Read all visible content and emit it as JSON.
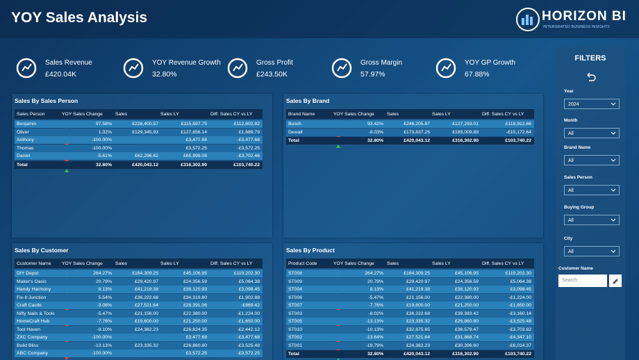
{
  "header": {
    "title": "YOY Sales Analysis",
    "logo": "HORIZON BI",
    "tagline": "INTERGRATED BUSINESS INSIGHTS"
  },
  "kpis": [
    {
      "label": "Sales Revenue",
      "value": "£420.04K"
    },
    {
      "label": "YOY Revenue Growth",
      "value": "32.80%"
    },
    {
      "label": "Gross Profit",
      "value": "£243.50K"
    },
    {
      "label": "Gross Margin",
      "value": "57.97%"
    },
    {
      "label": "YOY GP Growth",
      "value": "67.88%"
    }
  ],
  "tables": [
    {
      "title": "Sales By Sales Person",
      "columns": [
        "Sales Person",
        "YOY Sales Change",
        "Sales",
        "Sales LY",
        "Diff. Sales CY vs LY"
      ],
      "rows": [
        [
          "Benjamin",
          "97.58%",
          "£228,400.57",
          "£115,597.75",
          "£112,802.82"
        ],
        [
          "Oliver",
          "1.32%",
          "£129,345.93",
          "£127,656.14",
          "£1,689.79"
        ],
        [
          "Anthony",
          "-100.00%",
          "",
          "£3,477.68",
          "-£3,477.68"
        ],
        [
          "Thomas",
          "-100.00%",
          "",
          "£3,572.25",
          "-£3,572.25"
        ],
        [
          "Daniel",
          "-5.61%",
          "£62,296.62",
          "£65,999.08",
          "-£3,702.46"
        ]
      ],
      "total": [
        "Total",
        "32.80%",
        "£420,043.12",
        "£316,302.90",
        "£103,740.22"
      ]
    },
    {
      "title": "Sales By Brand",
      "columns": [
        "Brand Name",
        "YOY Sales Change",
        "Sales",
        "Sales LY",
        "Diff. Sales CY vs LY"
      ],
      "rows": [
        [
          "Bosch",
          "93.42%",
          "£246,205.87",
          "£127,293.01",
          "£118,912.86"
        ],
        [
          "Dewalt",
          "-8.03%",
          "£173,837.25",
          "£189,009.89",
          "-£15,172.64"
        ]
      ],
      "total": [
        "Total",
        "32.80%",
        "£420,043.12",
        "£316,302.90",
        "£103,740.22"
      ]
    },
    {
      "title": "Sales By Customer",
      "columns": [
        "Customer Name",
        "YOY Sales Change",
        "Sales",
        "Sales LY",
        "Diff. Sales CY vs LY"
      ],
      "rows": [
        [
          "DIY Depot",
          "264.27%",
          "£164,309.25",
          "£45,106.95",
          "£119,202.30"
        ],
        [
          "Maker's Oasis",
          "20.79%",
          "£29,420.97",
          "£24,356.59",
          "£5,064.38"
        ],
        [
          "Handy Harmony",
          "8.13%",
          "£41,219.38",
          "£38,120.93",
          "£3,098.45"
        ],
        [
          "Fix-It Junction",
          "5.54%",
          "£36,222.68",
          "£34,319.80",
          "£1,902.88"
        ],
        [
          "Craft Castle",
          "-3.06%",
          "£27,521.64",
          "£28,391.06",
          "-£869.42"
        ],
        [
          "Nifty Nails & Tools",
          "-5.47%",
          "£21,156.00",
          "£22,380.00",
          "-£1,224.00"
        ],
        [
          "HomeCraft Hub",
          "-7.76%",
          "£19,600.00",
          "£21,250.00",
          "-£1,650.00"
        ],
        [
          "Tool Haven",
          "-9.10%",
          "£24,382.23",
          "£26,824.35",
          "-£2,442.12"
        ],
        [
          "ZXC Company",
          "-100.00%",
          "",
          "£3,477.68",
          "-£3,477.68"
        ],
        [
          "Build Bliss",
          "-13.13%",
          "£23,335.32",
          "£26,860.80",
          "-£3,525.48"
        ],
        [
          "ABC Company",
          "-100.00%",
          "",
          "£3,572.25",
          "-£3,572.25"
        ]
      ]
    },
    {
      "title": "Sales By Product",
      "columns": [
        "Product Code",
        "YOY Sales Change",
        "Sales",
        "Sales LY",
        "Diff. Sales CY vs LY"
      ],
      "rows": [
        [
          "ST008",
          "264.27%",
          "£164,309.25",
          "£45,106.95",
          "£119,202.30"
        ],
        [
          "ST009",
          "20.79%",
          "£29,420.97",
          "£24,356.59",
          "£5,064.38"
        ],
        [
          "ST004",
          "8.13%",
          "£41,219.38",
          "£38,120.93",
          "£3,098.45"
        ],
        [
          "ST006",
          "-5.47%",
          "£21,156.00",
          "£22,380.00",
          "-£1,224.00"
        ],
        [
          "ST007",
          "-7.76%",
          "£19,600.00",
          "£21,250.00",
          "-£1,650.00"
        ],
        [
          "ST003",
          "-8.02%",
          "£36,222.68",
          "£39,383.42",
          "-£3,160.14"
        ],
        [
          "ST005",
          "-13.13%",
          "£23,335.32",
          "£26,860.80",
          "-£3,525.48"
        ],
        [
          "ST010",
          "-10.13%",
          "£32,875.65",
          "£36,579.47",
          "-£3,703.82"
        ],
        [
          "ST002",
          "-13.64%",
          "£27,521.64",
          "£31,868.74",
          "-£4,347.10"
        ],
        [
          "ST001",
          "-19.79%",
          "£24,382.23",
          "£30,396.60",
          "-£6,014.37"
        ]
      ],
      "total": [
        "Total",
        "32.80%",
        "£420,043.12",
        "£316,302.90",
        "£103,740.22"
      ]
    }
  ],
  "filters": {
    "title": "FILTERS",
    "items": [
      {
        "label": "Year",
        "value": "2024"
      },
      {
        "label": "Month",
        "value": "All"
      },
      {
        "label": "Brand Name",
        "value": "All"
      },
      {
        "label": "Sales Person",
        "value": "All"
      },
      {
        "label": "Buying Group",
        "value": "All"
      },
      {
        "label": "City",
        "value": "All"
      }
    ],
    "search": {
      "label": "Customer Name",
      "placeholder": "Search"
    }
  }
}
